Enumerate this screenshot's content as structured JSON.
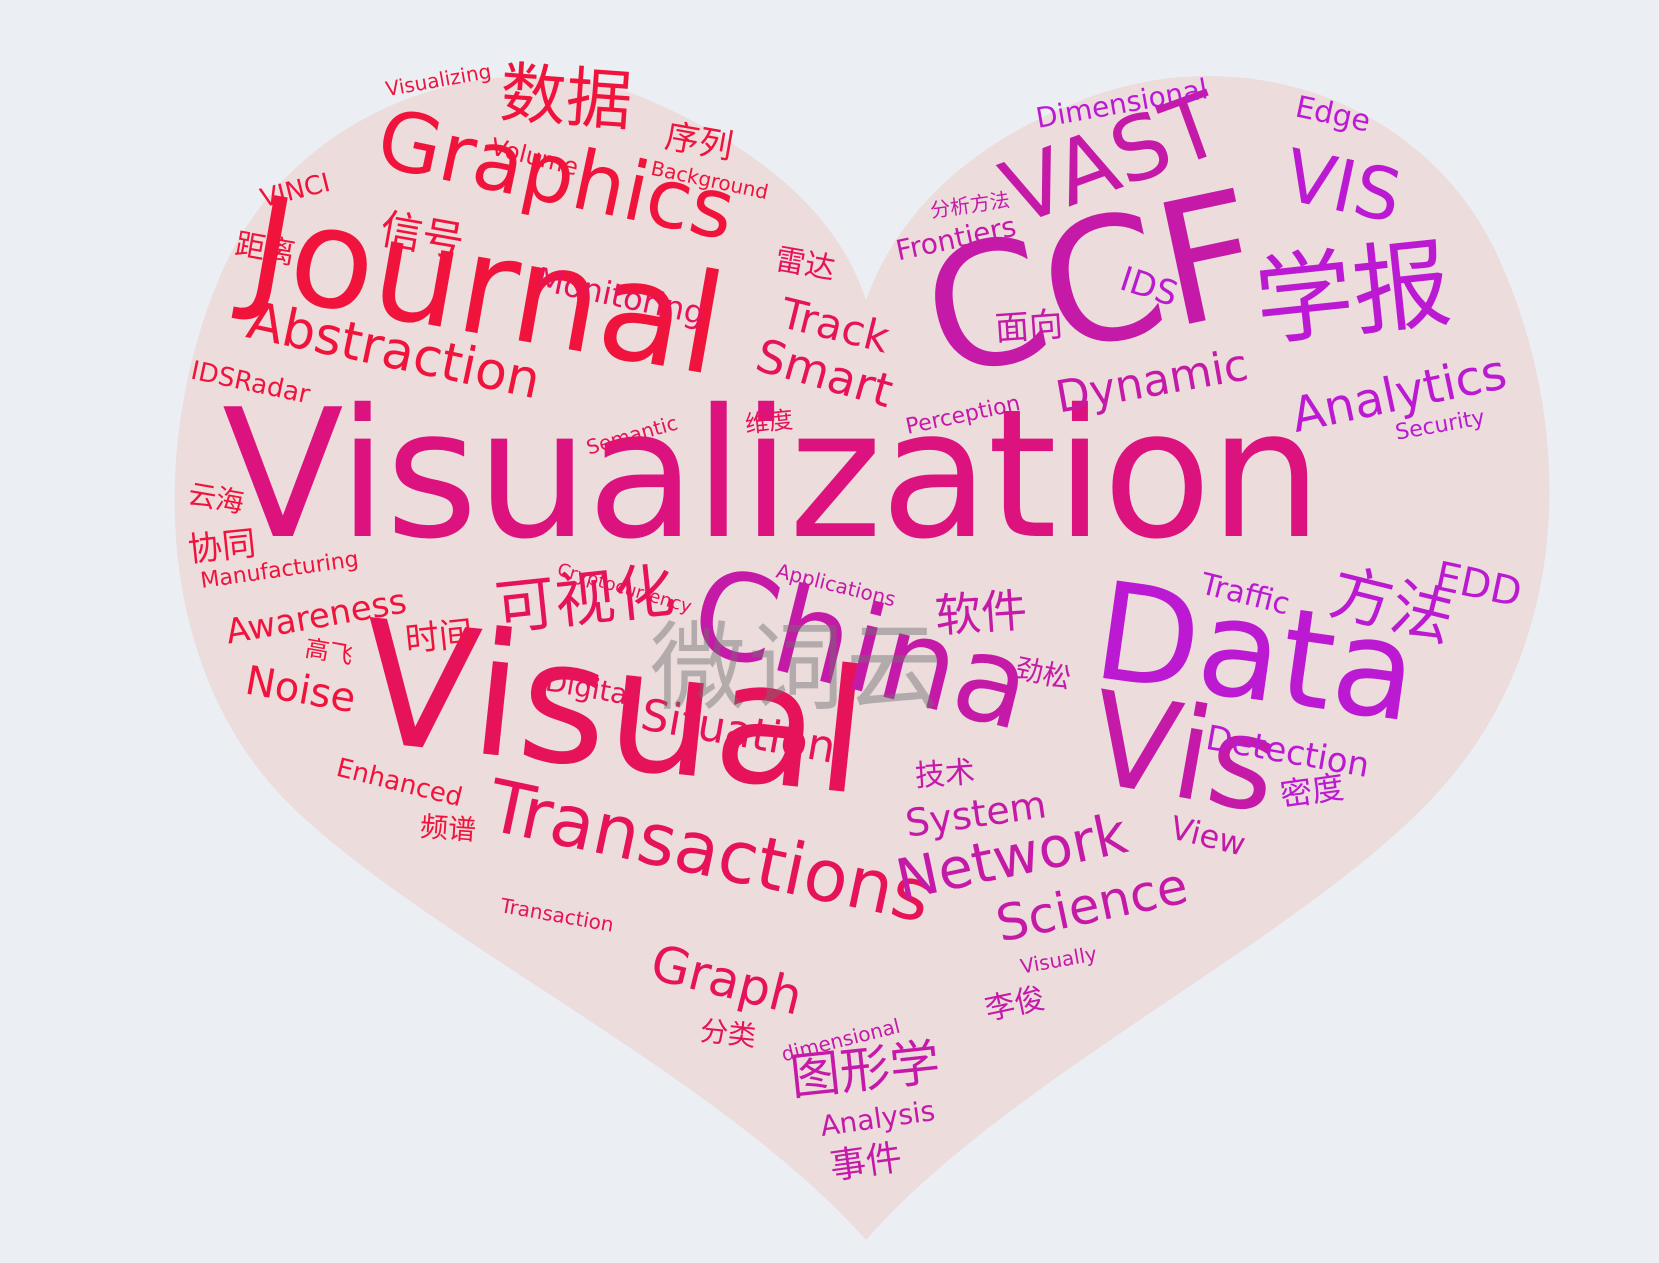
{
  "colors": {
    "background": "#ebeff3",
    "heart_fill": "#ecdcdc",
    "red": "#f0143c",
    "crimson": "#e6125a",
    "pink": "#dc137e",
    "magenta": "#c51aa8",
    "violet": "#bb1ad2",
    "watermark": "#8a8a8a"
  },
  "watermark": "微词云",
  "words": [
    "Visualization",
    "Visual",
    "CCF",
    "Journal",
    "Data",
    "China",
    "Vis",
    "Graphics",
    "Transactions",
    "VAST",
    "学报",
    "数据",
    "VIS",
    "Abstraction",
    "可视化",
    "方法",
    "Network",
    "Science",
    "Analytics",
    "Situation",
    "Smart",
    "Dynamic",
    "Graph",
    "图形学",
    "Track",
    "Monitoring",
    "软件",
    "Awareness",
    "Noise",
    "Detection",
    "System",
    "Digital",
    "Traffic",
    "EDD",
    "Dimensional",
    "Edge",
    "IDS",
    "Frontiers",
    "View",
    "Volume",
    "Background",
    "Visualizing",
    "VINCI",
    "Manufacturing",
    "IDSRadar",
    "Semantic",
    "Perception",
    "Security",
    "Applications",
    "Cryptocurrency",
    "Enhanced",
    "Transaction",
    "Visually",
    "dimensional",
    "Analysis",
    "事件",
    "分类",
    "李俊",
    "技术",
    "密度",
    "频谱",
    "高飞",
    "时间",
    "协同",
    "云海",
    "距离",
    "信号",
    "序列",
    "雷达",
    "维度",
    "面向",
    "分析方法",
    "劲松"
  ]
}
